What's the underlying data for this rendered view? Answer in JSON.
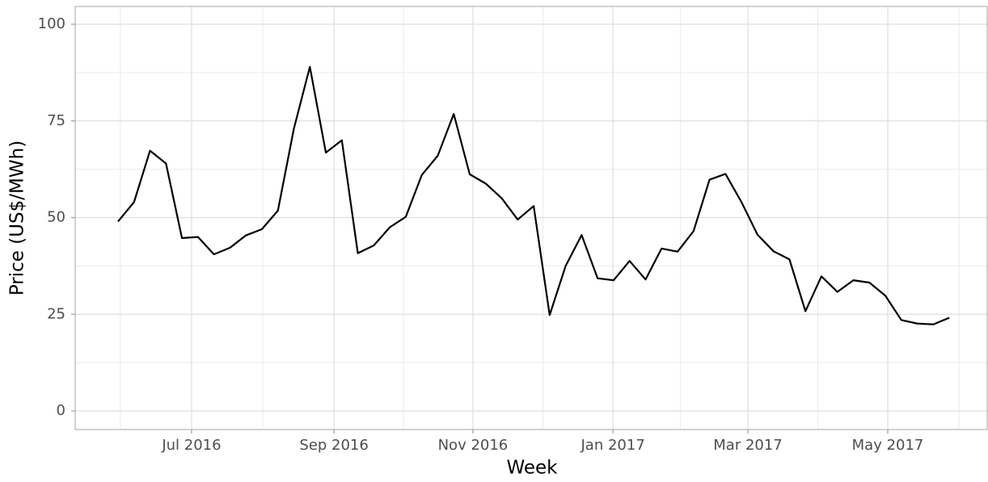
{
  "chart_data": {
    "type": "line",
    "x_label": "Week",
    "y_label": "Price (US$/MWh)",
    "categories": [
      null,
      null,
      null,
      null,
      null,
      null,
      null,
      null,
      null,
      null,
      null,
      null,
      null,
      null,
      null,
      null,
      null,
      null,
      null,
      null,
      null,
      null,
      null,
      null,
      null,
      null,
      null,
      null,
      null,
      null,
      null,
      null,
      null,
      null,
      null,
      null,
      null,
      null,
      null,
      null,
      null,
      null,
      null,
      null,
      null,
      null,
      null,
      null,
      null,
      null,
      null,
      null,
      null
    ],
    "series": [
      {
        "name": "Price",
        "color": "#000000",
        "values": [
          49,
          54,
          67.3,
          64,
          44.7,
          45,
          40.5,
          42.2,
          45.4,
          47,
          51.8,
          73,
          89,
          66.8,
          70,
          40.8,
          42.8,
          47.5,
          50.2,
          61,
          66,
          76.8,
          61.2,
          58.8,
          55,
          49.5,
          53,
          24.8,
          37.5,
          45.5,
          34.3,
          33.8,
          38.8,
          34,
          42,
          41.2,
          46.5,
          59.8,
          61.3,
          54,
          45.6,
          41.3,
          39.2,
          25.8,
          34.8,
          30.8,
          33.8,
          33.2,
          29.8,
          23.5,
          22.6,
          22.4,
          24.1
        ]
      }
    ],
    "xlim": [
      -2.68,
      54.42
    ],
    "xticks": [
      {
        "value": 4.6,
        "label": "Jul 2016"
      },
      {
        "value": 13.51,
        "label": "Sep 2016"
      },
      {
        "value": 22.2,
        "label": "Nov 2016"
      },
      {
        "value": 30.96,
        "label": "Jan 2017"
      },
      {
        "value": 39.4,
        "label": "Mar 2017"
      },
      {
        "value": 48.15,
        "label": "May 2017"
      }
    ],
    "ylim": [
      -4.8,
      104.6
    ],
    "yticks": [
      0,
      25,
      50,
      75,
      100
    ],
    "grid": true
  }
}
